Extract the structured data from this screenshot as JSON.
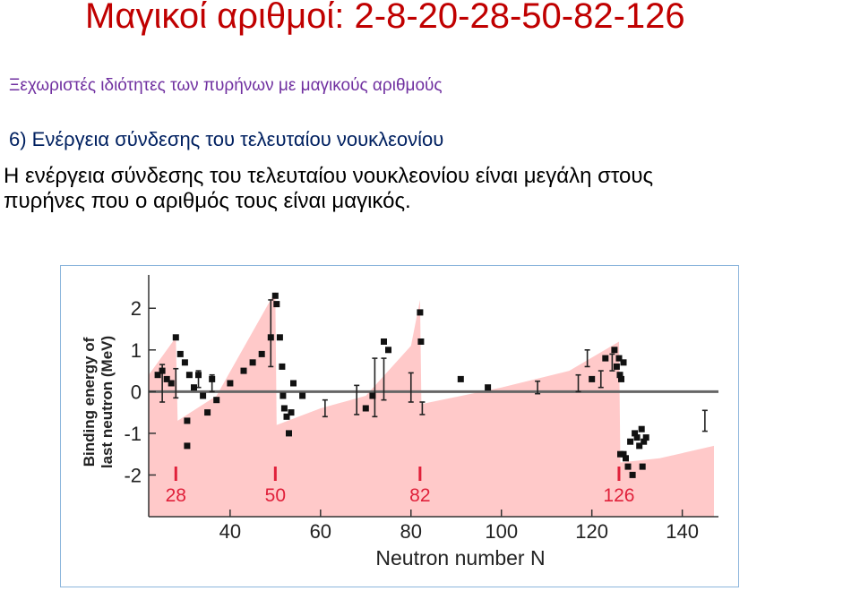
{
  "slide": {
    "title": "Μαγικοί αριθμοί: 2-8-20-28-50-82-126",
    "subtitle": "Ξεχωριστές ιδιότητες των πυρήνων με μαγικούς αριθμούς",
    "heading": "6) Ενέργεια σύνδεσης του τελευταίου νουκλεονίου",
    "body_line1": "Η ενέργεια σύνδεσης του τελευταίου νουκλεονίου είναι μεγάλη στους",
    "body_line2": "πυρήνες που ο αριθμός τους είναι μαγικός."
  },
  "colors": {
    "title": "#c00000",
    "subtitle": "#7030a0",
    "heading": "#002060",
    "fill": "#ffc9c9",
    "magic": "#e0203a",
    "zero_line": "#666666"
  },
  "chart_data": {
    "type": "scatter",
    "title": "",
    "xlabel": "Neutron number N",
    "ylabel_line1": "Binding energy of",
    "ylabel_line2": "last neutron (MeV)",
    "xlim": [
      22,
      148
    ],
    "ylim": [
      -3,
      2.8
    ],
    "xticks": [
      40,
      60,
      80,
      100,
      120,
      140
    ],
    "yticks": [
      2,
      1,
      0,
      -1,
      -2
    ],
    "xtick_labels": [
      "40",
      "60",
      "80",
      "100",
      "120",
      "140"
    ],
    "ytick_labels": [
      "2",
      "1",
      "0",
      "-1",
      "-2"
    ],
    "magic_numbers": [
      28,
      50,
      82,
      126
    ],
    "magic_labels": [
      "28",
      "50",
      "82",
      "126"
    ],
    "envelope": [
      [
        22,
        -3
      ],
      [
        22,
        0.4
      ],
      [
        28,
        1.3
      ],
      [
        28.4,
        -0.7
      ],
      [
        37,
        -0.1
      ],
      [
        50,
        2.4
      ],
      [
        50.3,
        -0.8
      ],
      [
        60,
        -0.4
      ],
      [
        70,
        -0.1
      ],
      [
        80,
        1.1
      ],
      [
        82,
        2.2
      ],
      [
        82.3,
        -0.3
      ],
      [
        100,
        0.1
      ],
      [
        115,
        0.5
      ],
      [
        126,
        1.2
      ],
      [
        126.3,
        -1.7
      ],
      [
        135,
        -1.6
      ],
      [
        147,
        -1.3
      ],
      [
        147,
        -3
      ]
    ],
    "points": [
      [
        24,
        0.4
      ],
      [
        25,
        0.5
      ],
      [
        26,
        0.3
      ],
      [
        27,
        0.2
      ],
      [
        28,
        1.3
      ],
      [
        29,
        0.9
      ],
      [
        30,
        0.7
      ],
      [
        31,
        0.4
      ],
      [
        30.5,
        -0.7
      ],
      [
        30.5,
        -1.3
      ],
      [
        32,
        0.1
      ],
      [
        33,
        0.4
      ],
      [
        34,
        -0.1
      ],
      [
        35,
        -0.5
      ],
      [
        36,
        0.3
      ],
      [
        37,
        -0.2
      ],
      [
        40,
        0.2
      ],
      [
        43,
        0.5
      ],
      [
        45,
        0.7
      ],
      [
        47,
        0.9
      ],
      [
        49,
        1.3
      ],
      [
        50,
        2.3
      ],
      [
        50.3,
        2.1
      ],
      [
        51,
        1.3
      ],
      [
        51.5,
        0.6
      ],
      [
        51.7,
        -0.1
      ],
      [
        52,
        -0.4
      ],
      [
        52.5,
        -0.6
      ],
      [
        53,
        -1.0
      ],
      [
        53.5,
        -0.5
      ],
      [
        54,
        0.2
      ],
      [
        56,
        -0.1
      ],
      [
        70,
        -0.4
      ],
      [
        71.5,
        -0.1
      ],
      [
        74,
        1.2
      ],
      [
        75,
        1.0
      ],
      [
        82,
        1.9
      ],
      [
        82.2,
        1.2
      ],
      [
        91,
        0.3
      ],
      [
        97,
        0.1
      ],
      [
        120,
        0.3
      ],
      [
        123,
        0.8
      ],
      [
        125,
        1.0
      ],
      [
        125.5,
        0.6
      ],
      [
        126,
        0.8
      ],
      [
        126.2,
        0.4
      ],
      [
        126.5,
        0.3
      ],
      [
        127,
        0.7
      ],
      [
        126.3,
        -1.5
      ],
      [
        127,
        -1.5
      ],
      [
        127.5,
        -1.6
      ],
      [
        128,
        -1.8
      ],
      [
        128.5,
        -1.2
      ],
      [
        129,
        -2.0
      ],
      [
        129.5,
        -1.0
      ],
      [
        130,
        -1.1
      ],
      [
        130.5,
        -1.3
      ],
      [
        131,
        -0.9
      ],
      [
        131.5,
        -1.2
      ],
      [
        132,
        -1.1
      ],
      [
        131.2,
        -1.8
      ]
    ],
    "error_bars": [
      [
        25,
        0.2,
        0.45
      ],
      [
        28,
        0.2,
        0.35
      ],
      [
        33,
        0.3,
        0.2
      ],
      [
        36,
        0.2,
        0.2
      ],
      [
        49,
        1.4,
        0.8
      ],
      [
        61,
        -0.4,
        0.2
      ],
      [
        68,
        -0.2,
        0.35
      ],
      [
        72,
        0.1,
        0.7
      ],
      [
        74,
        0.3,
        0.5
      ],
      [
        80,
        0.1,
        0.35
      ],
      [
        82.5,
        -0.4,
        0.15
      ],
      [
        108,
        0.1,
        0.15
      ],
      [
        117,
        0.2,
        0.2
      ],
      [
        119,
        0.8,
        0.2
      ],
      [
        122,
        0.3,
        0.2
      ],
      [
        124.5,
        0.7,
        0.2
      ],
      [
        145,
        -0.7,
        0.25
      ]
    ]
  }
}
